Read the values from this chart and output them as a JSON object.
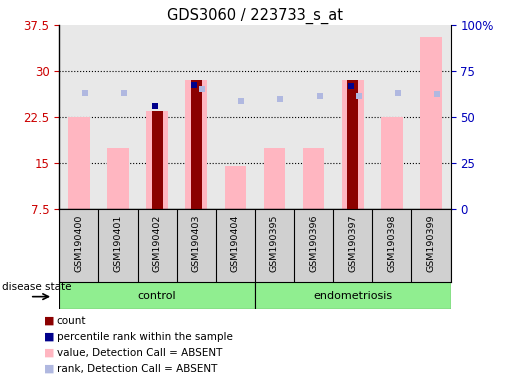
{
  "title": "GDS3060 / 223733_s_at",
  "samples": [
    "GSM190400",
    "GSM190401",
    "GSM190402",
    "GSM190403",
    "GSM190404",
    "GSM190395",
    "GSM190396",
    "GSM190397",
    "GSM190398",
    "GSM190399"
  ],
  "value_bars": [
    22.5,
    17.5,
    23.5,
    28.5,
    14.5,
    17.5,
    17.5,
    28.5,
    22.5,
    35.5
  ],
  "count_bars": [
    null,
    null,
    23.5,
    28.5,
    null,
    null,
    null,
    28.5,
    null,
    null
  ],
  "rank_dots_y": [
    26.5,
    26.5,
    null,
    27.0,
    25.2,
    25.5,
    26.0,
    26.0,
    26.5,
    26.3
  ],
  "percentile_dots_y": [
    null,
    null,
    24.3,
    27.8,
    null,
    null,
    null,
    27.5,
    null,
    null
  ],
  "ylim_left": [
    7.5,
    37.5
  ],
  "ylim_right": [
    0,
    100
  ],
  "yticks_left": [
    7.5,
    15.0,
    22.5,
    30.0,
    37.5
  ],
  "ytick_labels_left": [
    "7.5",
    "15",
    "22.5",
    "30",
    "37.5"
  ],
  "yticks_right": [
    0,
    25,
    50,
    75,
    100
  ],
  "ytick_labels_right": [
    "0",
    "25",
    "50",
    "75",
    "100%"
  ],
  "left_axis_color": "#cc0000",
  "right_axis_color": "#0000bb",
  "bar_color_value": "#ffb6c1",
  "bar_color_count": "#8b0000",
  "dot_color_rank": "#b0b8e0",
  "dot_color_percentile": "#00008b",
  "plot_bg_color": "#e8e8e8",
  "label_bg_color": "#d0d0d0",
  "grid_yticks": [
    15.0,
    22.5,
    30.0
  ],
  "control_indices": [
    0,
    1,
    2,
    3,
    4
  ],
  "endo_indices": [
    5,
    6,
    7,
    8,
    9
  ],
  "group_color": "#90EE90",
  "legend_items": [
    {
      "label": "count",
      "color": "#8b0000"
    },
    {
      "label": "percentile rank within the sample",
      "color": "#00008b"
    },
    {
      "label": "value, Detection Call = ABSENT",
      "color": "#ffb6c1"
    },
    {
      "label": "rank, Detection Call = ABSENT",
      "color": "#b0b8e0"
    }
  ]
}
